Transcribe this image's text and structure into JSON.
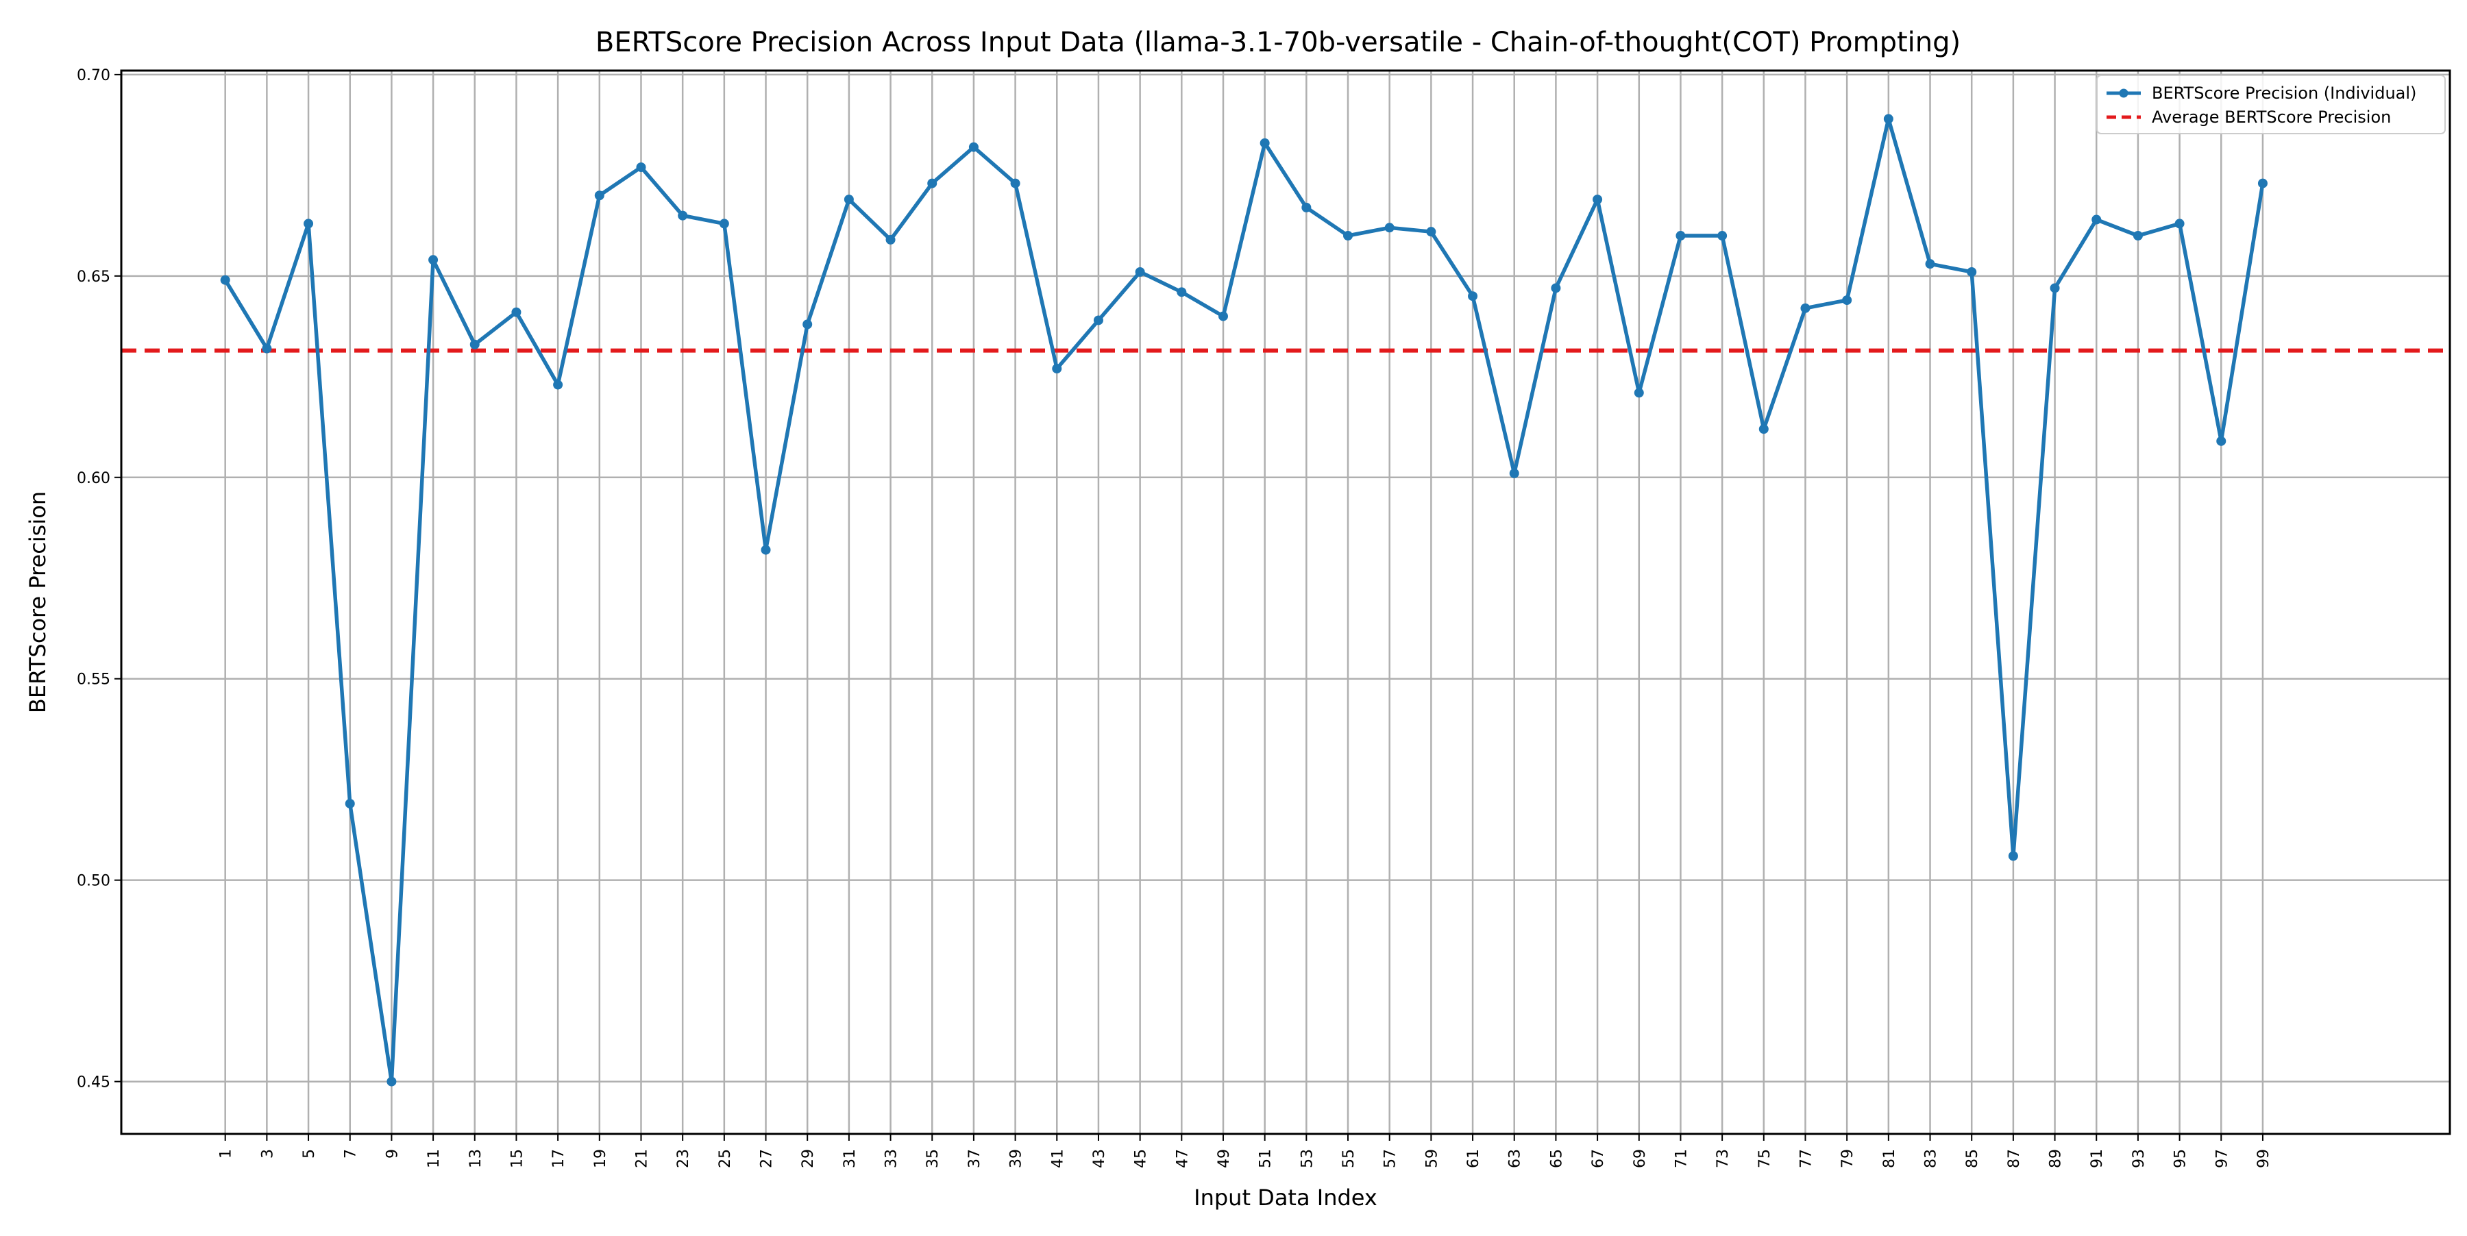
{
  "chart_data": {
    "type": "line",
    "title": "BERTScore Precision Across Input Data (llama-3.1-70b-versatile - Chain-of-thought(COT) Prompting)",
    "xlabel": "Input Data Index",
    "ylabel": "BERTScore Precision",
    "ylim": [
      0.437,
      0.701
    ],
    "xlim": [
      -4,
      108
    ],
    "grid": true,
    "legend_position": "top-right",
    "x_ticks": [
      1,
      3,
      5,
      7,
      9,
      11,
      13,
      15,
      17,
      19,
      21,
      23,
      25,
      27,
      29,
      31,
      33,
      35,
      37,
      39,
      41,
      43,
      45,
      47,
      49,
      51,
      53,
      55,
      57,
      59,
      61,
      63,
      65,
      67,
      69,
      71,
      73,
      75,
      77,
      79,
      81,
      83,
      85,
      87,
      89,
      91,
      93,
      95,
      97,
      99
    ],
    "y_ticks": [
      0.45,
      0.5,
      0.55,
      0.6,
      0.65,
      0.7
    ],
    "y_tick_labels": [
      "0.45",
      "0.50",
      "0.55",
      "0.60",
      "0.65",
      "0.70"
    ],
    "series": [
      {
        "name": "BERTScore Precision (Individual)",
        "color": "#1f77b4",
        "style": "solid",
        "marker": "circle",
        "x": [
          1,
          3,
          5,
          7,
          9,
          11,
          13,
          15,
          17,
          19,
          21,
          23,
          25,
          27,
          29,
          31,
          33,
          35,
          37,
          39,
          41,
          43,
          45,
          47,
          49,
          51,
          53,
          55,
          57,
          59,
          61,
          63,
          65,
          67,
          69,
          71,
          73,
          75,
          77,
          79,
          81,
          83,
          85,
          87,
          89,
          91,
          93,
          95,
          97,
          99
        ],
        "values": [
          0.649,
          0.632,
          0.663,
          0.519,
          0.45,
          0.654,
          0.633,
          0.641,
          0.623,
          0.67,
          0.677,
          0.665,
          0.663,
          0.582,
          0.638,
          0.669,
          0.659,
          0.673,
          0.682,
          0.673,
          0.627,
          0.639,
          0.651,
          0.646,
          0.64,
          0.683,
          0.667,
          0.66,
          0.662,
          0.661,
          0.645,
          0.601,
          0.647,
          0.669,
          0.621,
          0.66,
          0.66,
          0.612,
          0.642,
          0.644,
          0.689,
          0.653,
          0.651,
          0.506,
          0.647,
          0.664,
          0.66,
          0.663,
          0.609,
          0.673
        ]
      },
      {
        "name": "Average BERTScore Precision",
        "color": "#e31a1c",
        "style": "dashed",
        "constant": 0.6315
      }
    ]
  }
}
